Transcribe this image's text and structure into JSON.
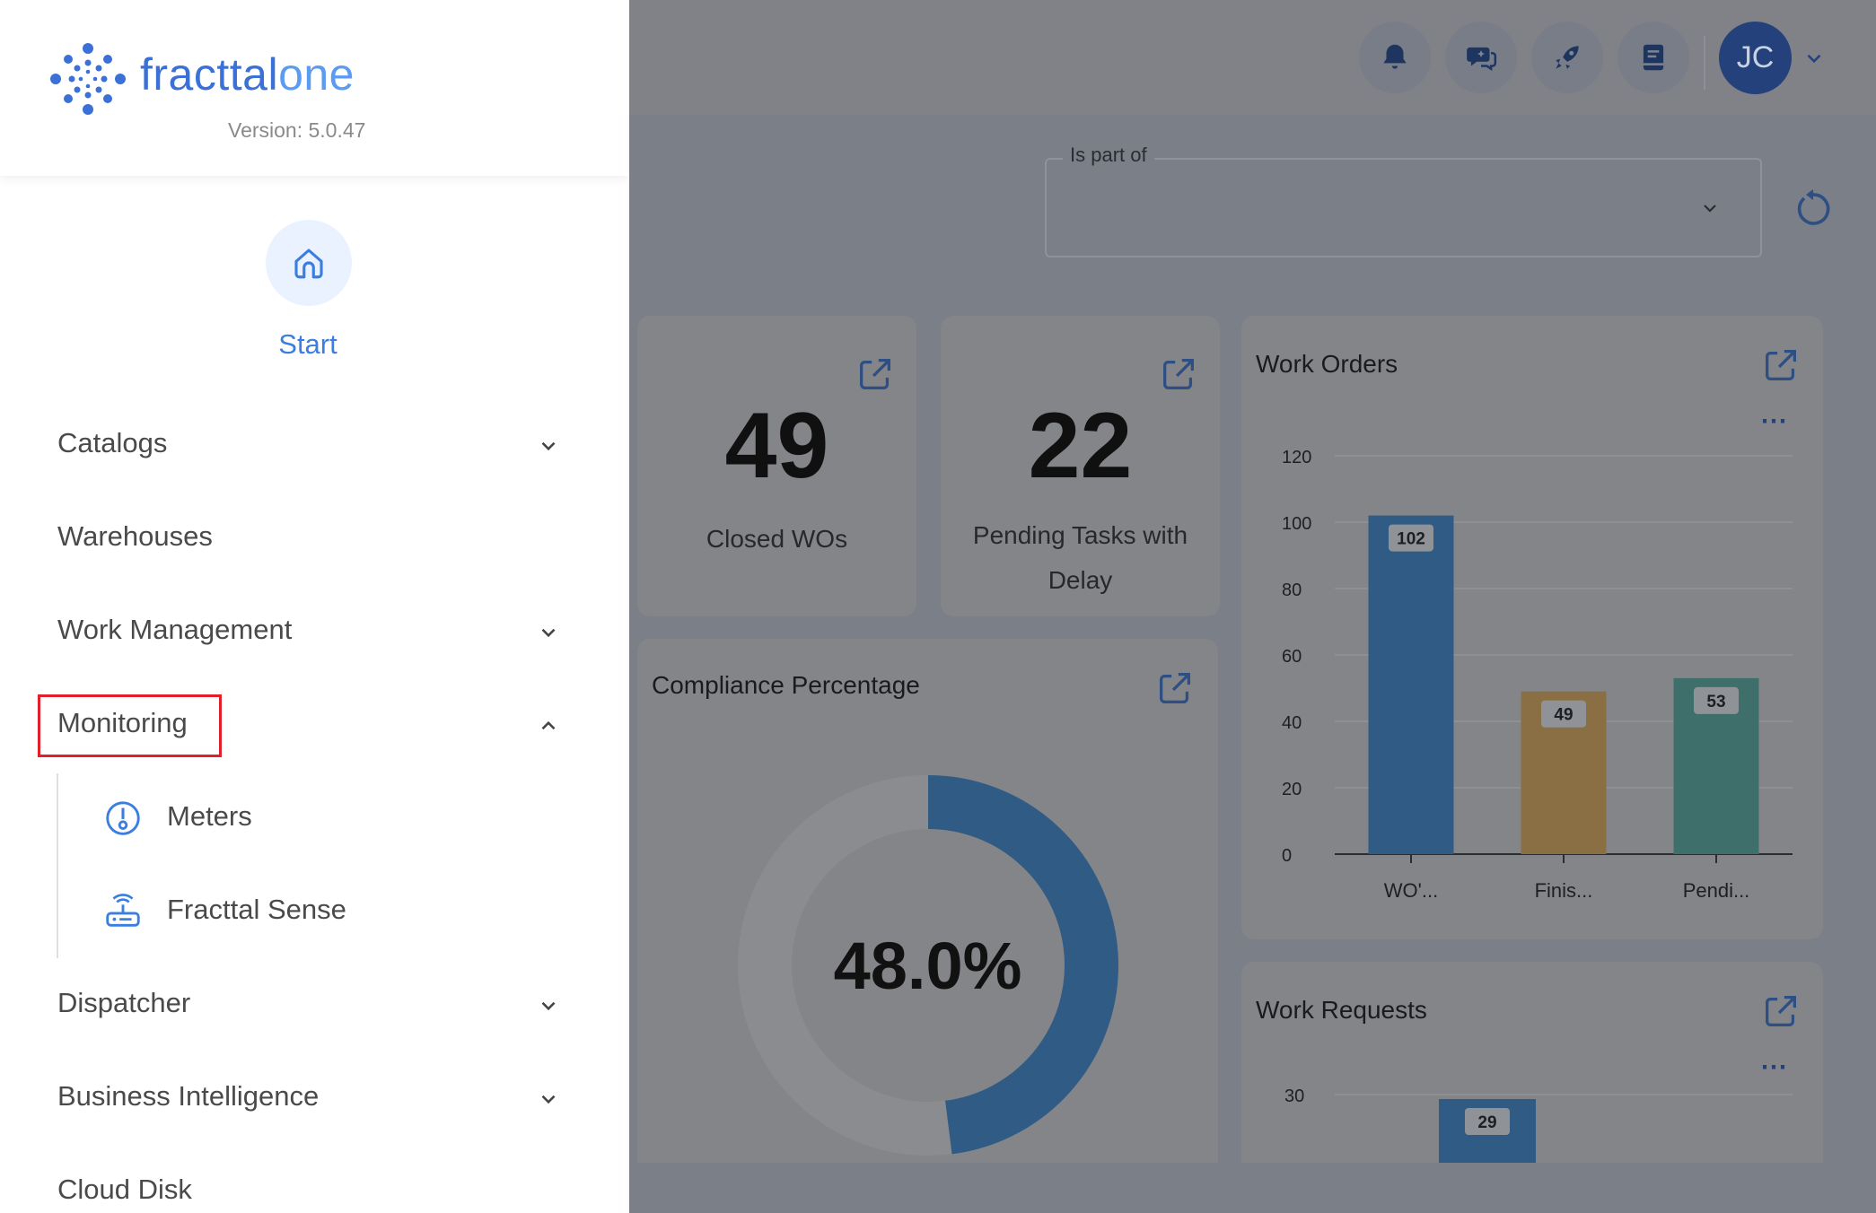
{
  "app": {
    "logo_name_part1": "fracttal",
    "logo_name_part2": "one",
    "version": "Version: 5.0.47"
  },
  "header": {
    "icons": [
      "bell-icon",
      "chat-sparkle-icon",
      "rocket-icon",
      "book-icon"
    ],
    "avatar_initials": "JC"
  },
  "filter": {
    "label": "Is part of",
    "value": ""
  },
  "sidebar": {
    "start_label": "Start",
    "items": [
      {
        "label": "Catalogs",
        "expandable": true
      },
      {
        "label": "Warehouses",
        "expandable": false
      },
      {
        "label": "Work Management",
        "expandable": true
      },
      {
        "label": "Monitoring",
        "expandable": true,
        "expanded": true,
        "highlighted": true
      },
      {
        "label": "Dispatcher",
        "expandable": true
      },
      {
        "label": "Business Intelligence",
        "expandable": true
      },
      {
        "label": "Cloud Disk",
        "expandable": false
      }
    ],
    "monitoring_children": [
      {
        "label": "Meters",
        "icon": "meter-icon"
      },
      {
        "label": "Fracttal Sense",
        "icon": "router-icon"
      }
    ]
  },
  "dashboard": {
    "closed_wos": {
      "value": "49",
      "label": "Closed WOs"
    },
    "pending_tasks": {
      "value": "22",
      "label_line1": "Pending Tasks with",
      "label_line2": "Delay"
    },
    "compliance": {
      "title": "Compliance Percentage",
      "value_text": "48.0%"
    },
    "work_orders": {
      "title": "Work Orders"
    },
    "work_requests": {
      "title": "Work Requests"
    }
  },
  "chart_data": [
    {
      "type": "bar",
      "title": "Work Orders",
      "categories": [
        "WO'...",
        "Finis...",
        "Pendi..."
      ],
      "values": [
        102,
        49,
        53
      ],
      "colors": [
        "#2f5b85",
        "#8a6f45",
        "#3f6f6a"
      ],
      "yticks": [
        0,
        20,
        40,
        60,
        80,
        100,
        120
      ],
      "ylim": [
        0,
        120
      ],
      "grid": true
    },
    {
      "type": "pie",
      "title": "Compliance Percentage",
      "values": [
        48.0,
        52.0
      ],
      "colors": [
        "#2f5b85",
        "#8b8c90"
      ]
    },
    {
      "type": "bar",
      "title": "Work Requests",
      "categories": [
        ""
      ],
      "values": [
        29
      ],
      "colors": [
        "#2f5b85"
      ],
      "yticks": [
        30
      ],
      "grid": true
    }
  ],
  "colors": {
    "accent": "#3a7ee0",
    "highlight_box": "#e2202a",
    "overlay": "#7b7f88"
  }
}
